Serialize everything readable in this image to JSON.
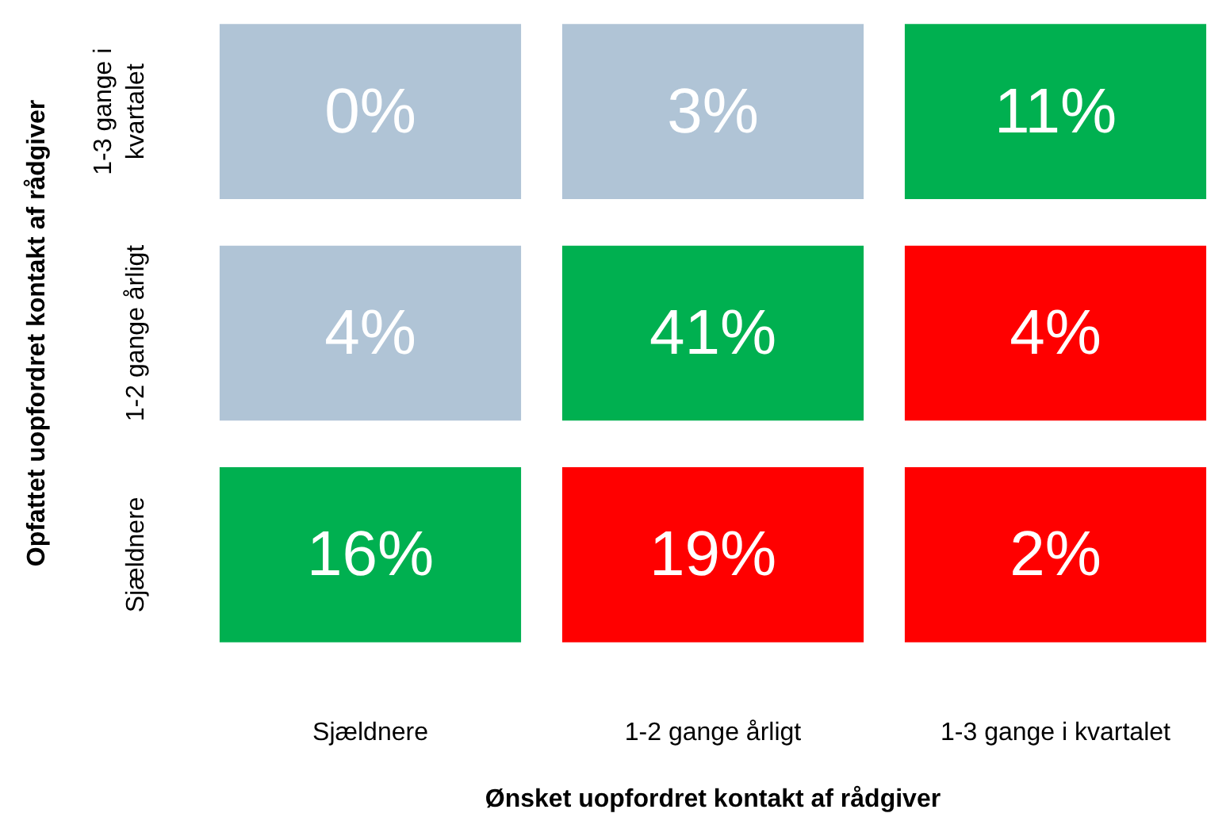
{
  "chart_data": {
    "type": "heatmap",
    "xlabel": "Ønsket uopfordret kontakt af rådgiver",
    "ylabel": "Opfattet uopfordret kontakt af rådgiver",
    "categories": [
      "Sjældnere",
      "1-2 gange årligt",
      "1-3 gange i kvartalet"
    ],
    "y_categories": [
      "1-3 gange i kvartalet",
      "1-2 gange årligt",
      "Sjældnere"
    ],
    "cells": [
      [
        0,
        3,
        11
      ],
      [
        4,
        41,
        4
      ],
      [
        16,
        19,
        2
      ]
    ],
    "cell_labels": [
      [
        "0%",
        "3%",
        "11%"
      ],
      [
        "4%",
        "41%",
        "4%"
      ],
      [
        "16%",
        "19%",
        "2%"
      ]
    ],
    "colors": [
      [
        "#b0c4d6",
        "#b0c4d6",
        "#00b050"
      ],
      [
        "#b0c4d6",
        "#00b050",
        "#ff0000"
      ],
      [
        "#00b050",
        "#ff0000",
        "#ff0000"
      ]
    ]
  }
}
